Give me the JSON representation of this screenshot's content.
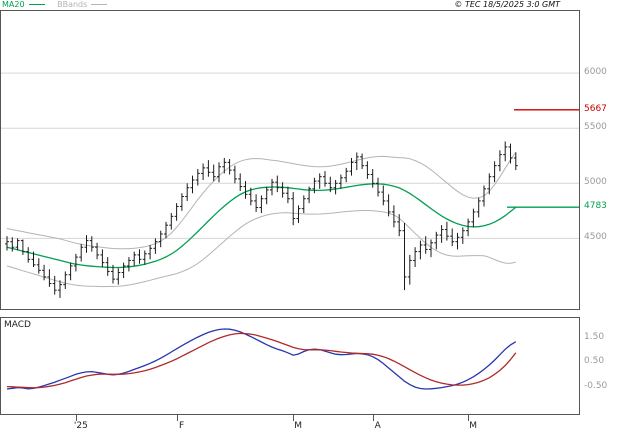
{
  "header": {
    "legend": [
      {
        "label": "MA20",
        "color": "#00A050"
      },
      {
        "label": "BBands",
        "color": "#B4B4B4"
      }
    ],
    "copyright": "© TEC 18/5/2025 3:0 GMT"
  },
  "chart_data": [
    {
      "type": "candlestick",
      "panel": "price",
      "ylim": [
        3850,
        6573
      ],
      "gridlines": [
        6000,
        5500,
        5000,
        4500
      ],
      "x_tick_labels": [
        "'25",
        "F",
        "M",
        "A",
        "M"
      ],
      "x_tick_indices": [
        13,
        32,
        54,
        69,
        87
      ],
      "levels": [
        {
          "label": "5667",
          "value": 5667,
          "color": "#CC0000",
          "x_start": 514
        },
        {
          "label": "4783",
          "value": 4783,
          "color": "#00A050",
          "x_start": 507
        }
      ],
      "ohlc": [
        [
          4450,
          4520,
          4390,
          4470
        ],
        [
          4470,
          4510,
          4380,
          4420
        ],
        [
          4420,
          4500,
          4390,
          4480
        ],
        [
          4480,
          4490,
          4350,
          4380
        ],
        [
          4380,
          4420,
          4280,
          4310
        ],
        [
          4310,
          4380,
          4240,
          4260
        ],
        [
          4260,
          4320,
          4180,
          4210
        ],
        [
          4210,
          4260,
          4120,
          4150
        ],
        [
          4150,
          4220,
          4060,
          4090
        ],
        [
          4090,
          4160,
          3990,
          4030
        ],
        [
          4030,
          4120,
          3960,
          4080
        ],
        [
          4080,
          4200,
          4040,
          4170
        ],
        [
          4170,
          4280,
          4120,
          4250
        ],
        [
          4250,
          4360,
          4200,
          4330
        ],
        [
          4330,
          4450,
          4290,
          4420
        ],
        [
          4420,
          4530,
          4370,
          4480
        ],
        [
          4480,
          4520,
          4380,
          4420
        ],
        [
          4420,
          4460,
          4310,
          4350
        ],
        [
          4350,
          4400,
          4240,
          4280
        ],
        [
          4280,
          4330,
          4160,
          4200
        ],
        [
          4200,
          4260,
          4090,
          4130
        ],
        [
          4130,
          4230,
          4080,
          4190
        ],
        [
          4190,
          4280,
          4140,
          4250
        ],
        [
          4250,
          4330,
          4200,
          4300
        ],
        [
          4300,
          4380,
          4250,
          4350
        ],
        [
          4350,
          4400,
          4270,
          4310
        ],
        [
          4310,
          4390,
          4260,
          4360
        ],
        [
          4360,
          4440,
          4310,
          4410
        ],
        [
          4410,
          4500,
          4360,
          4470
        ],
        [
          4470,
          4570,
          4420,
          4540
        ],
        [
          4540,
          4650,
          4500,
          4620
        ],
        [
          4620,
          4730,
          4580,
          4700
        ],
        [
          4700,
          4820,
          4660,
          4790
        ],
        [
          4790,
          4910,
          4750,
          4880
        ],
        [
          4880,
          5000,
          4840,
          4960
        ],
        [
          4960,
          5070,
          4910,
          5030
        ],
        [
          5030,
          5130,
          4980,
          5090
        ],
        [
          5090,
          5180,
          5030,
          5140
        ],
        [
          5140,
          5210,
          5060,
          5100
        ],
        [
          5100,
          5170,
          5020,
          5060
        ],
        [
          5060,
          5190,
          5010,
          5150
        ],
        [
          5150,
          5230,
          5090,
          5190
        ],
        [
          5190,
          5220,
          5080,
          5120
        ],
        [
          5120,
          5160,
          5000,
          5040
        ],
        [
          5040,
          5090,
          4930,
          4970
        ],
        [
          4970,
          5020,
          4860,
          4900
        ],
        [
          4900,
          4960,
          4800,
          4840
        ],
        [
          4840,
          4900,
          4740,
          4780
        ],
        [
          4780,
          4890,
          4730,
          4860
        ],
        [
          4860,
          4970,
          4810,
          4940
        ],
        [
          4940,
          5040,
          4890,
          5010
        ],
        [
          5010,
          5070,
          4920,
          4960
        ],
        [
          4960,
          5010,
          4870,
          4910
        ],
        [
          4910,
          4970,
          4820,
          4860
        ],
        [
          4860,
          4920,
          4620,
          4680
        ],
        [
          4680,
          4800,
          4640,
          4770
        ],
        [
          4770,
          4890,
          4730,
          4860
        ],
        [
          4860,
          4970,
          4820,
          4950
        ],
        [
          4950,
          5050,
          4910,
          5020
        ],
        [
          5020,
          5090,
          4950,
          5060
        ],
        [
          5060,
          5110,
          4970,
          5000
        ],
        [
          5000,
          5060,
          4920,
          4960
        ],
        [
          4960,
          5030,
          4900,
          5000
        ],
        [
          5000,
          5080,
          4950,
          5050
        ],
        [
          5050,
          5140,
          5010,
          5110
        ],
        [
          5110,
          5230,
          5070,
          5190
        ],
        [
          5190,
          5280,
          5120,
          5240
        ],
        [
          5240,
          5270,
          5130,
          5160
        ],
        [
          5160,
          5200,
          5040,
          5080
        ],
        [
          5080,
          5130,
          4960,
          5000
        ],
        [
          5000,
          5050,
          4880,
          4920
        ],
        [
          4920,
          4980,
          4800,
          4840
        ],
        [
          4840,
          4900,
          4700,
          4740
        ],
        [
          4740,
          4800,
          4600,
          4650
        ],
        [
          4650,
          4720,
          4520,
          4570
        ],
        [
          4570,
          4640,
          4030,
          4150
        ],
        [
          4150,
          4350,
          4080,
          4300
        ],
        [
          4300,
          4420,
          4240,
          4380
        ],
        [
          4380,
          4480,
          4310,
          4440
        ],
        [
          4440,
          4520,
          4360,
          4400
        ],
        [
          4400,
          4490,
          4330,
          4460
        ],
        [
          4460,
          4560,
          4400,
          4530
        ],
        [
          4530,
          4620,
          4460,
          4580
        ],
        [
          4580,
          4650,
          4480,
          4520
        ],
        [
          4520,
          4590,
          4430,
          4470
        ],
        [
          4470,
          4550,
          4400,
          4510
        ],
        [
          4510,
          4600,
          4450,
          4570
        ],
        [
          4570,
          4680,
          4520,
          4650
        ],
        [
          4650,
          4770,
          4600,
          4740
        ],
        [
          4740,
          4870,
          4690,
          4840
        ],
        [
          4840,
          4980,
          4790,
          4950
        ],
        [
          4950,
          5090,
          4900,
          5060
        ],
        [
          5060,
          5200,
          5010,
          5160
        ],
        [
          5160,
          5300,
          5110,
          5260
        ],
        [
          5260,
          5380,
          5200,
          5330
        ],
        [
          5330,
          5360,
          5180,
          5230
        ],
        [
          5230,
          5280,
          5120,
          5160
        ]
      ],
      "overlays": [
        {
          "name": "MA20",
          "color": "#00A050",
          "values": [
            4420,
            4408,
            4396,
            4384,
            4372,
            4360,
            4348,
            4336,
            4324,
            4312,
            4300,
            4288,
            4276,
            4266,
            4258,
            4252,
            4248,
            4244,
            4240,
            4238,
            4236,
            4236,
            4238,
            4242,
            4248,
            4256,
            4266,
            4278,
            4292,
            4310,
            4332,
            4358,
            4390,
            4428,
            4470,
            4515,
            4562,
            4610,
            4658,
            4705,
            4750,
            4793,
            4833,
            4868,
            4898,
            4922,
            4940,
            4952,
            4960,
            4964,
            4966,
            4966,
            4964,
            4960,
            4954,
            4948,
            4942,
            4938,
            4936,
            4936,
            4938,
            4942,
            4948,
            4956,
            4964,
            4972,
            4980,
            4987,
            4992,
            4995,
            4995,
            4992,
            4985,
            4974,
            4958,
            4936,
            4908,
            4876,
            4842,
            4806,
            4770,
            4736,
            4704,
            4676,
            4652,
            4632,
            4618,
            4608,
            4604,
            4606,
            4614,
            4628,
            4648,
            4674,
            4706,
            4744,
            4783
          ]
        },
        {
          "name": "BBands upper",
          "color": "#B4B4B4",
          "values": [
            4590,
            4580,
            4571,
            4562,
            4552,
            4542,
            4533,
            4524,
            4514,
            4504,
            4495,
            4483,
            4469,
            4456,
            4446,
            4437,
            4430,
            4424,
            4418,
            4413,
            4408,
            4406,
            4406,
            4407,
            4410,
            4416,
            4424,
            4436,
            4452,
            4475,
            4507,
            4548,
            4600,
            4658,
            4722,
            4787,
            4852,
            4912,
            4968,
            5020,
            5068,
            5111,
            5148,
            5178,
            5200,
            5214,
            5222,
            5224,
            5222,
            5216,
            5210,
            5204,
            5196,
            5188,
            5179,
            5170,
            5162,
            5156,
            5152,
            5151,
            5152,
            5156,
            5163,
            5173,
            5184,
            5196,
            5209,
            5221,
            5231,
            5239,
            5243,
            5244,
            5241,
            5236,
            5233,
            5231,
            5223,
            5206,
            5184,
            5156,
            5122,
            5084,
            5044,
            5004,
            4964,
            4927,
            4896,
            4874,
            4864,
            4868,
            4886,
            4928,
            4988,
            5059,
            5136,
            5214,
            5283
          ]
        },
        {
          "name": "BBands lower",
          "color": "#B4B4B4",
          "values": [
            4250,
            4236,
            4221,
            4206,
            4192,
            4178,
            4163,
            4148,
            4134,
            4120,
            4105,
            4093,
            4083,
            4076,
            4070,
            4067,
            4066,
            4064,
            4062,
            4063,
            4064,
            4066,
            4070,
            4077,
            4086,
            4096,
            4108,
            4120,
            4132,
            4145,
            4157,
            4168,
            4180,
            4198,
            4218,
            4243,
            4272,
            4308,
            4348,
            4390,
            4432,
            4475,
            4518,
            4558,
            4596,
            4630,
            4658,
            4680,
            4698,
            4712,
            4722,
            4728,
            4732,
            4732,
            4729,
            4726,
            4722,
            4720,
            4720,
            4721,
            4724,
            4728,
            4733,
            4739,
            4744,
            4748,
            4751,
            4753,
            4753,
            4751,
            4747,
            4740,
            4729,
            4712,
            4683,
            4641,
            4593,
            4546,
            4500,
            4456,
            4418,
            4388,
            4364,
            4348,
            4340,
            4337,
            4340,
            4342,
            4344,
            4344,
            4342,
            4328,
            4308,
            4289,
            4276,
            4274,
            4283
          ]
        }
      ]
    },
    {
      "type": "line",
      "panel": "macd",
      "title": "MACD",
      "ylim": [
        -1.64,
        2.36
      ],
      "y_ticks": [
        {
          "label": "1.50",
          "value": 1.5
        },
        {
          "label": "0.50",
          "value": 0.5
        },
        {
          "label": "-0.50",
          "value": -0.5
        }
      ],
      "series": [
        {
          "name": "MACD",
          "color": "#2A35B0",
          "values": [
            -0.58,
            -0.55,
            -0.52,
            -0.54,
            -0.57,
            -0.55,
            -0.5,
            -0.44,
            -0.37,
            -0.3,
            -0.22,
            -0.14,
            -0.06,
            0.02,
            0.08,
            0.12,
            0.13,
            0.1,
            0.06,
            0.02,
            0.0,
            0.02,
            0.07,
            0.14,
            0.22,
            0.3,
            0.38,
            0.47,
            0.57,
            0.68,
            0.8,
            0.93,
            1.06,
            1.19,
            1.31,
            1.43,
            1.54,
            1.64,
            1.73,
            1.8,
            1.85,
            1.87,
            1.86,
            1.82,
            1.75,
            1.66,
            1.56,
            1.45,
            1.34,
            1.23,
            1.13,
            1.05,
            0.98,
            0.9,
            0.8,
            0.85,
            0.95,
            1.02,
            1.05,
            1.03,
            0.97,
            0.9,
            0.84,
            0.82,
            0.83,
            0.85,
            0.87,
            0.86,
            0.82,
            0.74,
            0.62,
            0.46,
            0.28,
            0.1,
            -0.08,
            -0.26,
            -0.4,
            -0.5,
            -0.56,
            -0.58,
            -0.57,
            -0.55,
            -0.52,
            -0.48,
            -0.44,
            -0.38,
            -0.3,
            -0.2,
            -0.08,
            0.06,
            0.22,
            0.4,
            0.6,
            0.82,
            1.04,
            1.22,
            1.35
          ]
        },
        {
          "name": "Signal",
          "color": "#B02A2A",
          "values": [
            -0.48,
            -0.49,
            -0.5,
            -0.51,
            -0.52,
            -0.53,
            -0.52,
            -0.5,
            -0.47,
            -0.43,
            -0.38,
            -0.32,
            -0.25,
            -0.18,
            -0.11,
            -0.05,
            -0.01,
            0.02,
            0.03,
            0.03,
            0.02,
            0.02,
            0.03,
            0.05,
            0.08,
            0.12,
            0.17,
            0.23,
            0.3,
            0.38,
            0.46,
            0.55,
            0.65,
            0.76,
            0.87,
            0.98,
            1.09,
            1.2,
            1.31,
            1.41,
            1.5,
            1.57,
            1.63,
            1.67,
            1.69,
            1.68,
            1.66,
            1.62,
            1.56,
            1.5,
            1.43,
            1.36,
            1.28,
            1.2,
            1.12,
            1.06,
            1.03,
            1.02,
            1.02,
            1.02,
            1.01,
            0.99,
            0.96,
            0.93,
            0.91,
            0.89,
            0.88,
            0.87,
            0.86,
            0.84,
            0.8,
            0.74,
            0.66,
            0.56,
            0.45,
            0.33,
            0.21,
            0.09,
            -0.02,
            -0.12,
            -0.21,
            -0.28,
            -0.34,
            -0.38,
            -0.41,
            -0.42,
            -0.42,
            -0.4,
            -0.36,
            -0.3,
            -0.22,
            -0.12,
            0.02,
            0.18,
            0.38,
            0.62,
            0.9
          ]
        }
      ]
    }
  ]
}
